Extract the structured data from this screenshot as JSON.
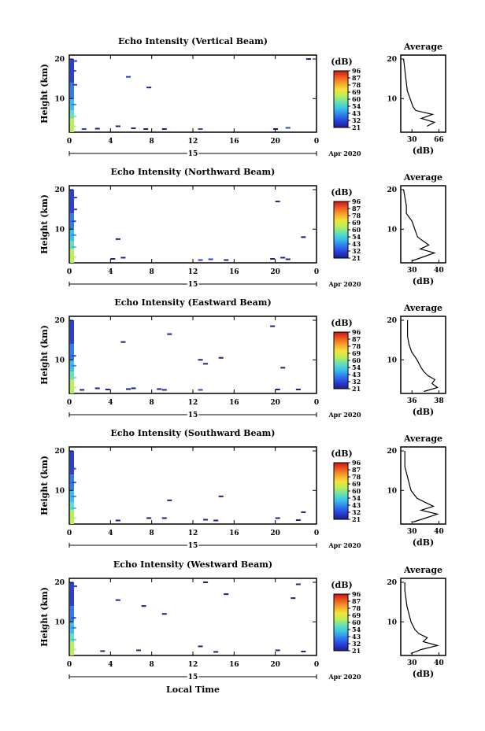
{
  "figure": {
    "xlabel": "Local Time",
    "date_label": "Apr 2020",
    "day_label": "15",
    "colorbar_unit": "(dB)",
    "colorbar_ticks": [
      "96",
      "87",
      "78",
      "69",
      "60",
      "54",
      "43",
      "32",
      "21"
    ],
    "colors": {
      "cmap": [
        "#1b1f8a",
        "#2a3fd6",
        "#2f7cf0",
        "#39c0ea",
        "#66e0b6",
        "#b9ef5a",
        "#f4e23a",
        "#f7a22a",
        "#ee5a1f",
        "#c6141a"
      ]
    }
  },
  "chart_data": [
    {
      "type": "heatmap",
      "title": "Echo Intensity (Vertical Beam)",
      "ylabel": "Height (km)",
      "xticks": [
        "0",
        "4",
        "8",
        "12",
        "16",
        "20",
        "0"
      ],
      "yticks": [
        "20",
        "10"
      ],
      "xlim": [
        0,
        24
      ],
      "ylim": [
        1.5,
        21
      ],
      "avg": {
        "title": "Average",
        "xlabel": "(dB)",
        "xticks": [
          "30",
          "66"
        ],
        "xlim": [
          24,
          72
        ],
        "yticks": [
          "20",
          "10"
        ],
        "profile": [
          [
            3.0,
            52
          ],
          [
            4.0,
            60
          ],
          [
            5.0,
            46
          ],
          [
            6.0,
            58
          ],
          [
            7.0,
            40
          ],
          [
            8.0,
            37
          ],
          [
            10.0,
            34
          ],
          [
            12.0,
            31
          ],
          [
            14.0,
            30
          ],
          [
            16.0,
            29
          ],
          [
            18.0,
            28
          ],
          [
            20.0,
            27
          ]
        ]
      },
      "points": [
        [
          0.2,
          3.0,
          60
        ],
        [
          0.2,
          5.5,
          55
        ],
        [
          0.2,
          8.5,
          40
        ],
        [
          0.3,
          13.5,
          32
        ],
        [
          0.2,
          17.0,
          30
        ],
        [
          0.3,
          19.5,
          30
        ],
        [
          1.2,
          2.3,
          28
        ],
        [
          2.5,
          2.4,
          25
        ],
        [
          4.5,
          3.0,
          25
        ],
        [
          5.5,
          15.5,
          26
        ],
        [
          6.0,
          2.5,
          25
        ],
        [
          7.5,
          12.8,
          24
        ],
        [
          7.2,
          2.3,
          25
        ],
        [
          9.0,
          2.3,
          24
        ],
        [
          12.5,
          2.3,
          26
        ],
        [
          19.8,
          2.3,
          25
        ],
        [
          21.0,
          2.6,
          26
        ],
        [
          23.0,
          20.0,
          25
        ]
      ]
    },
    {
      "type": "heatmap",
      "title": "Echo Intensity (Northward Beam)",
      "ylabel": "Height (km)",
      "xticks": [
        "0",
        "4",
        "8",
        "12",
        "16",
        "20",
        "0"
      ],
      "yticks": [
        "20",
        "10"
      ],
      "xlim": [
        0,
        24
      ],
      "ylim": [
        1.5,
        21
      ],
      "avg": {
        "title": "Average",
        "xlabel": "(dB)",
        "xticks": [
          "30",
          "40"
        ],
        "xlim": [
          26,
          42
        ],
        "yticks": [
          "20",
          "10"
        ],
        "profile": [
          [
            2.0,
            30
          ],
          [
            3.0,
            34
          ],
          [
            4.0,
            38
          ],
          [
            5.0,
            33
          ],
          [
            6.0,
            36
          ],
          [
            7.0,
            34
          ],
          [
            8.0,
            32
          ],
          [
            10.0,
            31
          ],
          [
            12.0,
            30
          ],
          [
            14.0,
            28
          ],
          [
            16.0,
            28
          ],
          [
            18.0,
            27.5
          ],
          [
            20.0,
            27
          ]
        ]
      },
      "points": [
        [
          0.2,
          3.0,
          60
        ],
        [
          0.2,
          5.5,
          50
        ],
        [
          0.2,
          8.5,
          40
        ],
        [
          0.2,
          12.0,
          32
        ],
        [
          0.3,
          15.0,
          30
        ],
        [
          0.3,
          18.0,
          30
        ],
        [
          4.5,
          7.5,
          25
        ],
        [
          4.0,
          2.5,
          25
        ],
        [
          5.0,
          2.8,
          25
        ],
        [
          12.5,
          2.2,
          26
        ],
        [
          13.5,
          2.4,
          26
        ],
        [
          15.0,
          2.2,
          25
        ],
        [
          19.5,
          2.5,
          25
        ],
        [
          20.5,
          2.8,
          25
        ],
        [
          21.0,
          2.4,
          25
        ],
        [
          20.0,
          17.0,
          25
        ],
        [
          22.5,
          8.0,
          25
        ]
      ]
    },
    {
      "type": "heatmap",
      "title": "Echo Intensity (Eastward Beam)",
      "ylabel": "Height (km)",
      "xticks": [
        "0",
        "4",
        "8",
        "12",
        "16",
        "20",
        "0"
      ],
      "yticks": [
        "20",
        "10"
      ],
      "xlim": [
        0,
        24
      ],
      "ylim": [
        1.5,
        21
      ],
      "avg": {
        "title": "Average",
        "xlabel": "(dB)",
        "xticks": [
          "36",
          "38"
        ],
        "xlim": [
          35.5,
          38.8
        ],
        "yticks": [
          "20",
          "10"
        ],
        "profile": [
          [
            2.0,
            37.2
          ],
          [
            3.0,
            38.2
          ],
          [
            4.0,
            37.8
          ],
          [
            5.0,
            38.0
          ],
          [
            6.0,
            37.5
          ],
          [
            7.0,
            37.2
          ],
          [
            8.0,
            37.0
          ],
          [
            10.0,
            36.7
          ],
          [
            12.0,
            36.3
          ],
          [
            14.0,
            36.1
          ],
          [
            16.0,
            36.0
          ],
          [
            18.0,
            36.0
          ],
          [
            20.0,
            36.0
          ]
        ]
      },
      "points": [
        [
          0.2,
          3.0,
          60
        ],
        [
          0.2,
          5.5,
          55
        ],
        [
          0.2,
          8.5,
          40
        ],
        [
          0.2,
          11.0,
          32
        ],
        [
          1.0,
          2.4,
          25
        ],
        [
          2.5,
          2.8,
          25
        ],
        [
          3.5,
          2.5,
          25
        ],
        [
          5.0,
          14.5,
          25
        ],
        [
          5.5,
          2.6,
          25
        ],
        [
          6.0,
          2.8,
          25
        ],
        [
          8.5,
          2.6,
          25
        ],
        [
          9.0,
          2.4,
          25
        ],
        [
          9.5,
          16.5,
          24
        ],
        [
          12.5,
          2.4,
          26
        ],
        [
          12.5,
          10.0,
          24
        ],
        [
          13.0,
          9.0,
          24
        ],
        [
          14.5,
          10.5,
          24
        ],
        [
          19.5,
          18.5,
          25
        ],
        [
          20.0,
          2.5,
          25
        ],
        [
          20.5,
          8.0,
          25
        ],
        [
          22.0,
          2.5,
          25
        ]
      ]
    },
    {
      "type": "heatmap",
      "title": "Echo Intensity (Southward Beam)",
      "ylabel": "Height (km)",
      "xticks": [
        "0",
        "4",
        "8",
        "12",
        "16",
        "20",
        "0"
      ],
      "yticks": [
        "20",
        "10"
      ],
      "xlim": [
        0,
        24
      ],
      "ylim": [
        1.5,
        21
      ],
      "avg": {
        "title": "Average",
        "xlabel": "(dB)",
        "xticks": [
          "30",
          "40"
        ],
        "xlim": [
          26,
          48
        ],
        "yticks": [
          "20",
          "10"
        ],
        "profile": [
          [
            2.0,
            32
          ],
          [
            3.0,
            38
          ],
          [
            4.0,
            44
          ],
          [
            5.0,
            36
          ],
          [
            6.0,
            42
          ],
          [
            7.0,
            38
          ],
          [
            8.0,
            34
          ],
          [
            10.0,
            31
          ],
          [
            12.0,
            30
          ],
          [
            14.0,
            29
          ],
          [
            16.0,
            28
          ],
          [
            18.0,
            28
          ],
          [
            20.0,
            28
          ]
        ]
      },
      "points": [
        [
          0.2,
          3.0,
          60
        ],
        [
          0.2,
          5.5,
          50
        ],
        [
          0.2,
          8.5,
          40
        ],
        [
          0.2,
          12.0,
          32
        ],
        [
          0.2,
          15.5,
          30
        ],
        [
          4.5,
          2.4,
          25
        ],
        [
          7.5,
          3.0,
          25
        ],
        [
          9.0,
          3.0,
          25
        ],
        [
          9.5,
          7.5,
          25
        ],
        [
          13.0,
          2.6,
          25
        ],
        [
          14.0,
          2.4,
          25
        ],
        [
          14.5,
          8.5,
          25
        ],
        [
          20.0,
          3.0,
          25
        ],
        [
          22.0,
          2.5,
          25
        ],
        [
          22.5,
          4.5,
          25
        ]
      ]
    },
    {
      "type": "heatmap",
      "title": "Echo Intensity (Westward Beam)",
      "ylabel": "Height (km)",
      "xticks": [
        "0",
        "4",
        "8",
        "12",
        "16",
        "20",
        "0"
      ],
      "yticks": [
        "20",
        "10"
      ],
      "xlim": [
        0,
        24
      ],
      "ylim": [
        1.5,
        21
      ],
      "avg": {
        "title": "Average",
        "xlabel": "(dB)",
        "xticks": [
          "30",
          "40"
        ],
        "xlim": [
          26,
          48
        ],
        "yticks": [
          "20",
          "10"
        ],
        "profile": [
          [
            2.0,
            31
          ],
          [
            3.0,
            36
          ],
          [
            4.0,
            44
          ],
          [
            5.0,
            37
          ],
          [
            6.0,
            39
          ],
          [
            7.0,
            35
          ],
          [
            8.0,
            33
          ],
          [
            10.0,
            31
          ],
          [
            12.0,
            30
          ],
          [
            14.0,
            29
          ],
          [
            16.0,
            28.5
          ],
          [
            18.0,
            28
          ],
          [
            20.0,
            28
          ]
        ]
      },
      "points": [
        [
          0.2,
          3.0,
          60
        ],
        [
          0.2,
          5.5,
          50
        ],
        [
          0.2,
          8.5,
          40
        ],
        [
          0.2,
          11.0,
          32
        ],
        [
          0.3,
          19.0,
          30
        ],
        [
          3.0,
          2.6,
          25
        ],
        [
          4.5,
          15.5,
          25
        ],
        [
          6.5,
          2.8,
          25
        ],
        [
          7.0,
          14.0,
          25
        ],
        [
          9.0,
          12.0,
          24
        ],
        [
          12.5,
          3.8,
          25
        ],
        [
          13.0,
          20.0,
          25
        ],
        [
          14.0,
          2.4,
          25
        ],
        [
          15.0,
          17.0,
          24
        ],
        [
          20.0,
          2.8,
          25
        ],
        [
          21.5,
          16.0,
          25
        ],
        [
          22.0,
          19.5,
          25
        ],
        [
          22.5,
          2.5,
          25
        ]
      ]
    }
  ]
}
